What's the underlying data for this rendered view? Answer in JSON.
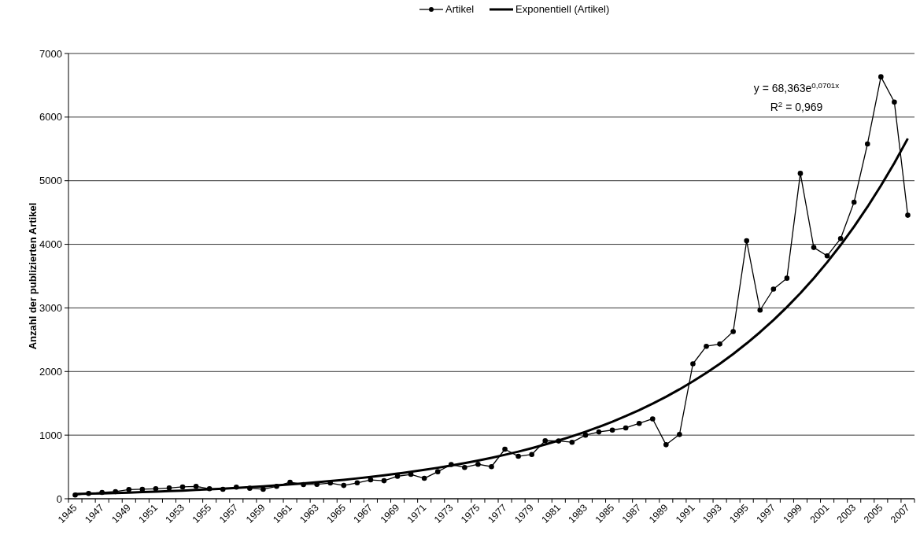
{
  "chart_data": {
    "type": "line",
    "ylabel": "Anzahl der publizierten Artikel",
    "categories": [
      "1945",
      null,
      "1947",
      null,
      "1949",
      null,
      "1951",
      null,
      "1953",
      null,
      "1955",
      null,
      "1957",
      null,
      "1959",
      null,
      "1961",
      null,
      "1963",
      null,
      "1965",
      null,
      "1967",
      null,
      "1969",
      null,
      "1971",
      null,
      "1973",
      null,
      "1975",
      null,
      "1977",
      null,
      "1979",
      null,
      "1981",
      null,
      "1983",
      null,
      "1985",
      null,
      "1987",
      null,
      "1989",
      null,
      "1991",
      null,
      "1993",
      null,
      "1995",
      null,
      "1997",
      null,
      "1999",
      null,
      "2001",
      null,
      "2003",
      null,
      "2005",
      null,
      "2007"
    ],
    "series": [
      {
        "name": "Artikel",
        "color": "#000000",
        "marker": "circle",
        "values": [
          58,
          83,
          99,
          112,
          145,
          149,
          157,
          169,
          186,
          194,
          157,
          149,
          182,
          165,
          149,
          194,
          260,
          223,
          227,
          247,
          209,
          250,
          296,
          283,
          354,
          383,
          321,
          425,
          538,
          492,
          542,
          504,
          779,
          667,
          696,
          912,
          908,
          888,
          1000,
          1050,
          1079,
          1114,
          1185,
          1256,
          849,
          1010,
          2121,
          2397,
          2432,
          2628,
          4055,
          2965,
          3296,
          3467,
          5115,
          3950,
          3819,
          4090,
          4663,
          5578,
          6633,
          6236,
          4457
        ]
      },
      {
        "name": "Exponentiell (Artikel)",
        "color": "#000000",
        "marker": "none",
        "type": "line",
        "values": [
          73,
          79,
          84,
          90,
          97,
          104,
          112,
          120,
          128,
          138,
          148,
          159,
          170,
          182,
          196,
          210,
          225,
          241,
          259,
          278,
          298,
          320,
          343,
          368,
          395,
          423,
          454,
          487,
          522,
          560,
          601,
          644,
          691,
          741,
          795,
          853,
          915,
          981,
          1053,
          1129,
          1211,
          1299,
          1394,
          1495,
          1603,
          1720,
          1845,
          1979,
          2122,
          2276,
          2442,
          2619,
          2809,
          3013,
          3232,
          3467,
          3718,
          3988,
          4278,
          4589,
          4922,
          5279,
          5663
        ]
      }
    ],
    "ylim": [
      0,
      7000
    ],
    "yticks": [
      0,
      1000,
      2000,
      3000,
      4000,
      5000,
      6000,
      7000
    ],
    "grid": "y",
    "legend": "top",
    "annotations": [
      "y = 68,363e$^{0,0701x}$",
      "R$^{2}$ = 0,969"
    ]
  }
}
